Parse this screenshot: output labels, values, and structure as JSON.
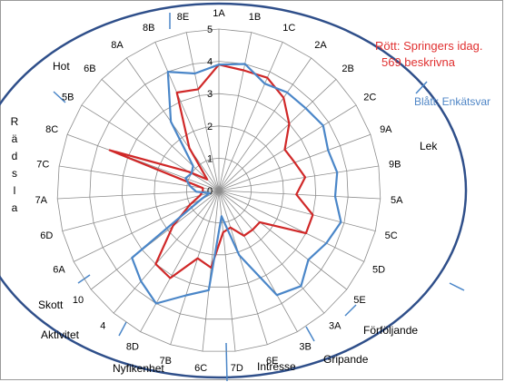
{
  "chart_data": {
    "type": "radar",
    "rlim": [
      0,
      5
    ],
    "radial_ticks": [
      "0",
      "1",
      "2",
      "3",
      "4",
      "5"
    ],
    "categories": [
      "1A",
      "1B",
      "1C",
      "2A",
      "2B",
      "2C",
      "9A",
      "9B",
      "5A",
      "5C",
      "5D",
      "5E",
      "3A",
      "3B",
      "6E",
      "7D",
      "6C",
      "7B",
      "8D",
      "4",
      "10",
      "6A",
      "6D",
      "7A",
      "7C",
      "8C",
      "5B",
      "6B",
      "8A",
      "8B",
      "8E"
    ],
    "series": [
      {
        "name": "Rött: Springers idag. 569 beskrivna",
        "color": "#d02828",
        "values": [
          3.9,
          3.8,
          3.8,
          3.5,
          3.0,
          2.4,
          2.5,
          2.7,
          2.4,
          3.0,
          3.0,
          1.6,
          1.6,
          1.6,
          1.2,
          1.3,
          2.4,
          2.2,
          3.1,
          3.0,
          1.8,
          1.0,
          0.6,
          0.5,
          0.5,
          3.6,
          1.1,
          0.5,
          1.6,
          3.3,
          3.2
        ]
      },
      {
        "name": "Blått: Enkätsvar",
        "color": "#4a86c8",
        "values": [
          3.9,
          4.0,
          3.6,
          3.7,
          3.7,
          3.8,
          3.6,
          3.7,
          3.6,
          3.9,
          3.7,
          3.5,
          3.9,
          3.7,
          2.1,
          0.8,
          3.1,
          3.4,
          4.0,
          3.7,
          3.4,
          0.6,
          0.3,
          0.7,
          0.9,
          1.1,
          1.0,
          1.1,
          2.6,
          4.0,
          3.7
        ]
      }
    ],
    "groups": [
      "Lek",
      "Förföljande",
      "Gripande",
      "Intresse",
      "Nyfikenhet",
      "Aktivitet",
      "Skott",
      "Rädsla",
      "Hot"
    ],
    "legend_red": [
      "Rött: Springers idag.",
      "569 beskrivna"
    ],
    "legend_blue": "Blått: Enkätsvar",
    "grid": true
  }
}
